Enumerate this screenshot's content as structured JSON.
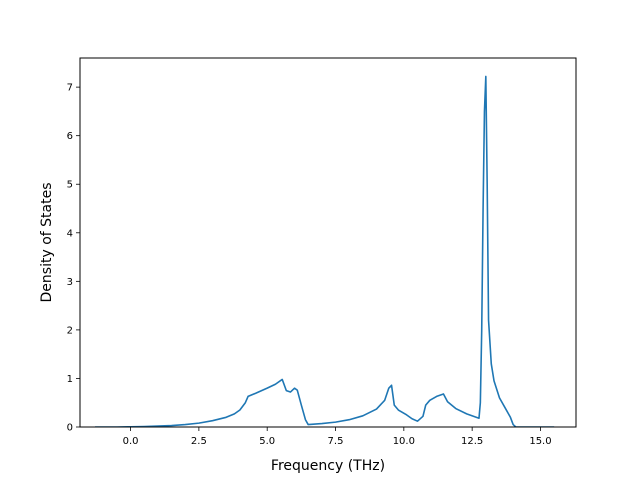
{
  "chart_data": {
    "type": "line",
    "xlabel": "Frequency (THz)",
    "ylabel": "Density of States",
    "xlim": [
      -1.85,
      16.3
    ],
    "ylim": [
      0,
      7.6
    ],
    "xticks": [
      0.0,
      2.5,
      5.0,
      7.5,
      10.0,
      12.5,
      15.0
    ],
    "xtick_labels": [
      "0.0",
      "2.5",
      "5.0",
      "7.5",
      "10.0",
      "12.5",
      "15.0"
    ],
    "yticks": [
      0,
      1,
      2,
      3,
      4,
      5,
      6,
      7
    ],
    "ytick_labels": [
      "0",
      "1",
      "2",
      "3",
      "4",
      "5",
      "6",
      "7"
    ],
    "grid": false,
    "line_color": "#1f77b4",
    "series": [
      {
        "x": [
          -1.3,
          -0.5,
          0.0,
          0.5,
          1.0,
          1.5,
          2.0,
          2.5,
          3.0,
          3.5,
          3.8,
          4.0,
          4.2,
          4.3,
          4.6,
          5.0,
          5.3,
          5.55,
          5.7,
          5.85,
          6.0,
          6.1,
          6.25,
          6.4,
          6.5,
          7.0,
          7.5,
          8.0,
          8.5,
          9.0,
          9.3,
          9.45,
          9.55,
          9.65,
          9.8,
          10.1,
          10.3,
          10.5,
          10.7,
          10.8,
          10.95,
          11.2,
          11.45,
          11.6,
          11.9,
          12.3,
          12.75,
          12.8,
          12.85,
          12.9,
          12.95,
          13.0,
          13.05,
          13.1,
          13.2,
          13.3,
          13.5,
          13.7,
          13.9,
          14.0,
          14.1,
          14.5,
          15.0,
          15.5
        ],
        "y": [
          0.0,
          0.0,
          0.005,
          0.01,
          0.02,
          0.03,
          0.05,
          0.08,
          0.13,
          0.2,
          0.27,
          0.35,
          0.5,
          0.63,
          0.7,
          0.8,
          0.88,
          0.98,
          0.75,
          0.72,
          0.8,
          0.76,
          0.45,
          0.15,
          0.05,
          0.07,
          0.1,
          0.15,
          0.23,
          0.37,
          0.55,
          0.8,
          0.86,
          0.45,
          0.35,
          0.25,
          0.17,
          0.12,
          0.22,
          0.45,
          0.55,
          0.63,
          0.68,
          0.52,
          0.38,
          0.27,
          0.18,
          0.5,
          2.0,
          4.5,
          6.5,
          7.22,
          5.0,
          2.2,
          1.3,
          0.95,
          0.6,
          0.4,
          0.2,
          0.05,
          0.0,
          0.0,
          0.0,
          0.0
        ]
      }
    ]
  }
}
